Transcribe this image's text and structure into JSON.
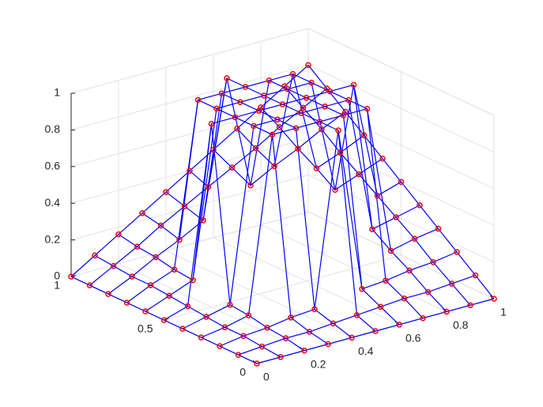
{
  "chart_data": {
    "type": "surface",
    "x": [
      0,
      0.1,
      0.2,
      0.3,
      0.4,
      0.5,
      0.6,
      0.7,
      0.8,
      0.9,
      1
    ],
    "y": [
      0,
      0.1,
      0.2,
      0.3,
      0.4,
      0.5,
      0.6,
      0.7,
      0.8,
      0.9,
      1
    ],
    "z": [
      [
        0,
        0,
        0,
        0,
        0,
        0,
        0,
        0,
        0,
        0,
        0
      ],
      [
        0,
        0.01,
        0.02,
        0.02,
        0.03,
        0.04,
        0.05,
        0.06,
        0.06,
        0.07,
        0.08
      ],
      [
        0,
        0.02,
        0.03,
        0.05,
        0.06,
        1,
        0.1,
        0.11,
        0.13,
        0.14,
        0.16
      ],
      [
        0,
        0.02,
        0.05,
        1,
        1,
        1,
        1,
        1,
        0.19,
        0.22,
        0.24
      ],
      [
        0,
        0.03,
        0.06,
        1,
        1,
        1,
        1,
        1,
        0.26,
        0.29,
        0.32
      ],
      [
        0,
        0.04,
        1,
        1,
        1,
        1,
        1,
        1,
        1,
        0.36,
        0.4
      ],
      [
        0,
        0.05,
        0.1,
        1,
        1,
        1,
        1,
        1,
        0.38,
        0.43,
        0.48
      ],
      [
        0,
        0.06,
        0.11,
        1,
        1,
        1,
        1,
        1,
        0.45,
        0.5,
        0.56
      ],
      [
        0,
        0.06,
        0.13,
        0.19,
        0.26,
        1,
        0.38,
        0.45,
        0.51,
        0.58,
        0.64
      ],
      [
        0,
        0.07,
        0.14,
        0.22,
        0.29,
        0.36,
        0.43,
        0.5,
        0.58,
        0.65,
        0.72
      ],
      [
        0,
        0.08,
        0.16,
        0.24,
        0.32,
        0.4,
        0.48,
        0.56,
        0.64,
        0.72,
        0.8
      ]
    ],
    "xlim": [
      0,
      1
    ],
    "ylim": [
      0,
      1
    ],
    "zlim": [
      0,
      1
    ],
    "xticks": [
      0,
      0.2,
      0.4,
      0.6,
      0.8,
      1
    ],
    "yticks": [
      0,
      0.5,
      1
    ],
    "zticks": [
      0,
      0.2,
      0.4,
      0.6,
      0.8,
      1
    ],
    "grid": true,
    "line_color": "#0000ff",
    "marker_color": "#ff0000"
  }
}
